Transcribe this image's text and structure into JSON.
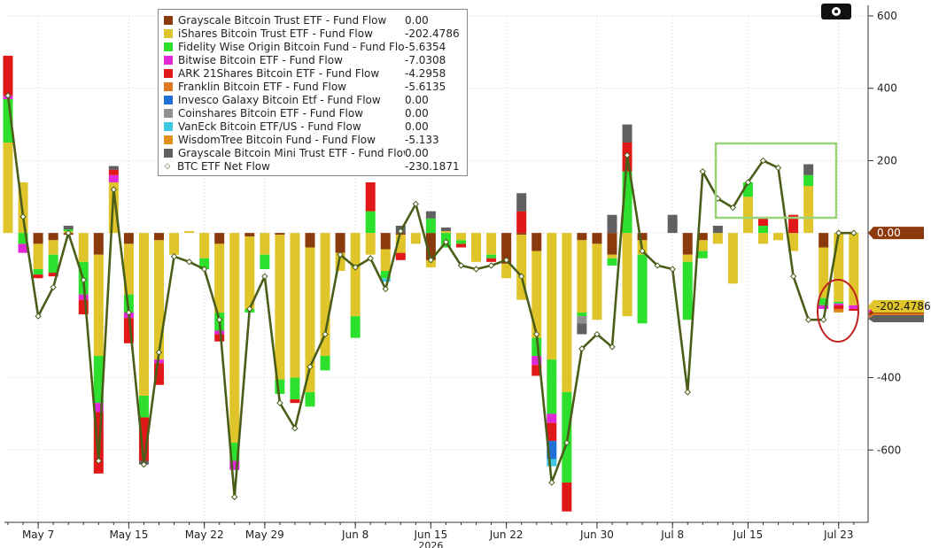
{
  "chart_data": {
    "type": "bar",
    "stacked": true,
    "ylim": [
      -800,
      600
    ],
    "yticks": [
      600,
      400,
      200,
      -400,
      -600
    ],
    "x_labels": [
      {
        "label": "May 7",
        "index": 2
      },
      {
        "label": "May 15",
        "index": 8
      },
      {
        "label": "May 22",
        "index": 13
      },
      {
        "label": "May 29",
        "index": 17
      },
      {
        "label": "Jun 8",
        "index": 23
      },
      {
        "label": "Jun 15",
        "index": 28
      },
      {
        "label": "Jun 22",
        "index": 33
      },
      {
        "label": "Jun 30",
        "index": 39
      },
      {
        "label": "Jul 8",
        "index": 44
      },
      {
        "label": "Jul 15",
        "index": 49
      },
      {
        "label": "Jul 23",
        "index": 55
      }
    ],
    "year_label": "2026",
    "series": [
      {
        "name": "Grayscale Bitcoin Trust ETF - Fund Flow",
        "legend_value": "0.00",
        "color": "#8b3a0e",
        "values": [
          0,
          0,
          -30,
          -20,
          -5,
          0,
          -60,
          0,
          -30,
          0,
          -20,
          0,
          0,
          0,
          -30,
          0,
          -10,
          0,
          -5,
          0,
          -40,
          0,
          -55,
          0,
          0,
          -45,
          -5,
          0,
          -75,
          0,
          0,
          0,
          0,
          -85,
          -5,
          -50,
          0,
          0,
          -20,
          -30,
          -60,
          0,
          -20,
          0,
          0,
          -60,
          -20,
          0,
          0,
          0,
          0,
          0,
          0,
          0,
          -40,
          0,
          0
        ]
      },
      {
        "name": "iShares Bitcoin Trust ETF - Fund Flow",
        "legend_value": "-202.4786",
        "color": "#e0c52a",
        "values": [
          250,
          140,
          -70,
          -40,
          5,
          -80,
          -280,
          140,
          -140,
          -450,
          -330,
          -60,
          5,
          -70,
          -190,
          -580,
          -200,
          -60,
          -400,
          -400,
          -400,
          -340,
          -50,
          -230,
          -60,
          -60,
          -50,
          -30,
          -20,
          5,
          -20,
          -80,
          -60,
          -40,
          -180,
          -240,
          -350,
          -440,
          -200,
          -210,
          -10,
          -230,
          -40,
          0,
          0,
          -20,
          -30,
          -30,
          -140,
          100,
          -30,
          -20,
          -50,
          130,
          -140,
          -190,
          -200
        ]
      },
      {
        "name": "Fidelity Wise Origin Bitcoin Fund - Fund Flow",
        "legend_value": "-5.6354",
        "color": "#2ee02e",
        "values": [
          120,
          -30,
          -15,
          -50,
          5,
          -90,
          -130,
          0,
          -50,
          -60,
          0,
          0,
          0,
          -30,
          -50,
          -50,
          -10,
          -40,
          -40,
          -60,
          -40,
          -40,
          0,
          -60,
          60,
          -20,
          0,
          0,
          40,
          -40,
          -10,
          0,
          -10,
          0,
          0,
          -50,
          -150,
          -250,
          -10,
          0,
          -20,
          170,
          -190,
          0,
          0,
          -160,
          -20,
          0,
          0,
          40,
          20,
          0,
          0,
          30,
          -20,
          -5,
          0
        ]
      },
      {
        "name": "Bitwise Bitcoin ETF - Fund Flow",
        "legend_value": "-7.0308",
        "color": "#e028d8",
        "values": [
          10,
          -25,
          0,
          0,
          0,
          -15,
          -25,
          20,
          -15,
          0,
          -10,
          0,
          0,
          0,
          -10,
          -25,
          0,
          0,
          0,
          0,
          0,
          0,
          0,
          0,
          0,
          0,
          0,
          0,
          0,
          0,
          0,
          0,
          0,
          0,
          0,
          -25,
          -25,
          0,
          0,
          0,
          0,
          0,
          0,
          0,
          0,
          0,
          0,
          0,
          0,
          0,
          0,
          0,
          0,
          0,
          -10,
          -5,
          -10
        ]
      },
      {
        "name": "ARK 21Shares Bitcoin ETF - Fund Flow",
        "legend_value": "-4.2958",
        "color": "#e01818",
        "values": [
          110,
          0,
          -10,
          -10,
          0,
          -40,
          -170,
          15,
          -70,
          -120,
          -60,
          0,
          0,
          0,
          -20,
          0,
          0,
          0,
          0,
          -10,
          0,
          0,
          0,
          0,
          80,
          0,
          -20,
          0,
          0,
          0,
          -10,
          0,
          -10,
          0,
          60,
          -30,
          -50,
          -80,
          0,
          0,
          0,
          80,
          0,
          0,
          0,
          0,
          0,
          0,
          0,
          0,
          20,
          0,
          50,
          0,
          0,
          -10,
          -5
        ]
      },
      {
        "name": "Franklin Bitcoin ETF - Fund Flow",
        "legend_value": "-5.6135",
        "color": "#e07820",
        "values": [
          0,
          0,
          0,
          0,
          0,
          0,
          0,
          0,
          0,
          0,
          0,
          0,
          0,
          0,
          0,
          0,
          0,
          0,
          0,
          0,
          0,
          0,
          0,
          0,
          0,
          0,
          0,
          0,
          0,
          0,
          0,
          0,
          0,
          0,
          0,
          0,
          0,
          0,
          0,
          0,
          0,
          0,
          0,
          0,
          0,
          0,
          0,
          0,
          0,
          0,
          0,
          0,
          0,
          0,
          0,
          -5,
          0
        ]
      },
      {
        "name": "Invesco Galaxy Bitcoin Etf - Fund Flow",
        "legend_value": "0.00",
        "color": "#2070d8",
        "values": [
          0,
          0,
          0,
          0,
          0,
          0,
          0,
          0,
          0,
          0,
          0,
          0,
          0,
          0,
          0,
          0,
          0,
          0,
          0,
          0,
          0,
          0,
          0,
          0,
          0,
          0,
          0,
          0,
          0,
          0,
          0,
          0,
          0,
          0,
          0,
          0,
          -50,
          0,
          0,
          0,
          0,
          0,
          0,
          0,
          0,
          0,
          0,
          0,
          0,
          0,
          0,
          0,
          0,
          0,
          0,
          0,
          0
        ]
      },
      {
        "name": "Coinshares Bitcoin ETF - Fund Flow",
        "legend_value": "0.00",
        "color": "#909090",
        "values": [
          0,
          0,
          0,
          0,
          0,
          0,
          0,
          0,
          0,
          0,
          0,
          0,
          0,
          0,
          0,
          0,
          0,
          0,
          0,
          0,
          0,
          0,
          0,
          0,
          0,
          0,
          0,
          0,
          0,
          0,
          0,
          0,
          0,
          0,
          0,
          0,
          0,
          0,
          -20,
          0,
          0,
          0,
          0,
          0,
          0,
          0,
          0,
          0,
          0,
          0,
          0,
          0,
          0,
          0,
          0,
          0,
          0
        ]
      },
      {
        "name": "VanEck Bitcoin ETF/US - Fund Flow",
        "legend_value": "0.00",
        "color": "#40c8e0",
        "values": [
          0,
          0,
          0,
          0,
          0,
          0,
          0,
          0,
          0,
          0,
          0,
          0,
          0,
          0,
          0,
          0,
          0,
          0,
          0,
          0,
          0,
          0,
          0,
          0,
          0,
          -10,
          0,
          0,
          0,
          0,
          0,
          0,
          0,
          0,
          0,
          0,
          -20,
          0,
          0,
          0,
          0,
          0,
          0,
          0,
          0,
          0,
          0,
          0,
          0,
          0,
          0,
          0,
          0,
          0,
          0,
          0,
          0
        ]
      },
      {
        "name": "WisdomTree Bitcoin Fund - Fund Flow",
        "legend_value": "-5.133",
        "color": "#e09018",
        "values": [
          0,
          0,
          0,
          0,
          0,
          0,
          0,
          0,
          0,
          0,
          0,
          0,
          0,
          0,
          0,
          0,
          0,
          0,
          0,
          0,
          0,
          0,
          0,
          0,
          0,
          0,
          0,
          0,
          0,
          0,
          0,
          0,
          0,
          0,
          0,
          0,
          0,
          0,
          0,
          0,
          0,
          0,
          0,
          0,
          0,
          0,
          0,
          0,
          0,
          0,
          0,
          0,
          0,
          0,
          0,
          -5,
          0
        ]
      },
      {
        "name": "Grayscale Bitcoin Mini Trust ETF - Fund Flow",
        "legend_value": "0.00",
        "color": "#606060",
        "values": [
          0,
          0,
          0,
          0,
          10,
          0,
          0,
          10,
          0,
          -10,
          0,
          0,
          0,
          0,
          0,
          0,
          0,
          0,
          0,
          0,
          0,
          0,
          0,
          0,
          0,
          0,
          20,
          0,
          20,
          10,
          0,
          0,
          0,
          0,
          50,
          0,
          0,
          0,
          -30,
          0,
          50,
          50,
          0,
          0,
          50,
          0,
          0,
          20,
          0,
          0,
          0,
          0,
          0,
          30,
          0,
          0,
          0
        ]
      }
    ],
    "net_flow": {
      "name": "BTC ETF Net Flow",
      "legend_value": "-230.1871",
      "color": "#4a5e1a",
      "values": [
        380,
        45,
        -230,
        -150,
        0,
        -130,
        -630,
        120,
        -220,
        -640,
        -330,
        -65,
        -80,
        -100,
        -240,
        -730,
        -210,
        -120,
        -470,
        -540,
        -370,
        -280,
        -60,
        -95,
        -70,
        -155,
        5,
        80,
        -75,
        -25,
        -90,
        -100,
        -90,
        -75,
        -120,
        -280,
        -690,
        -580,
        -320,
        -280,
        -315,
        215,
        -50,
        -90,
        -100,
        -440,
        170,
        95,
        70,
        140,
        200,
        180,
        -120,
        -240,
        -240,
        0,
        0
      ]
    },
    "last_value_label": "-202.4786",
    "zero_label": "0.00"
  }
}
